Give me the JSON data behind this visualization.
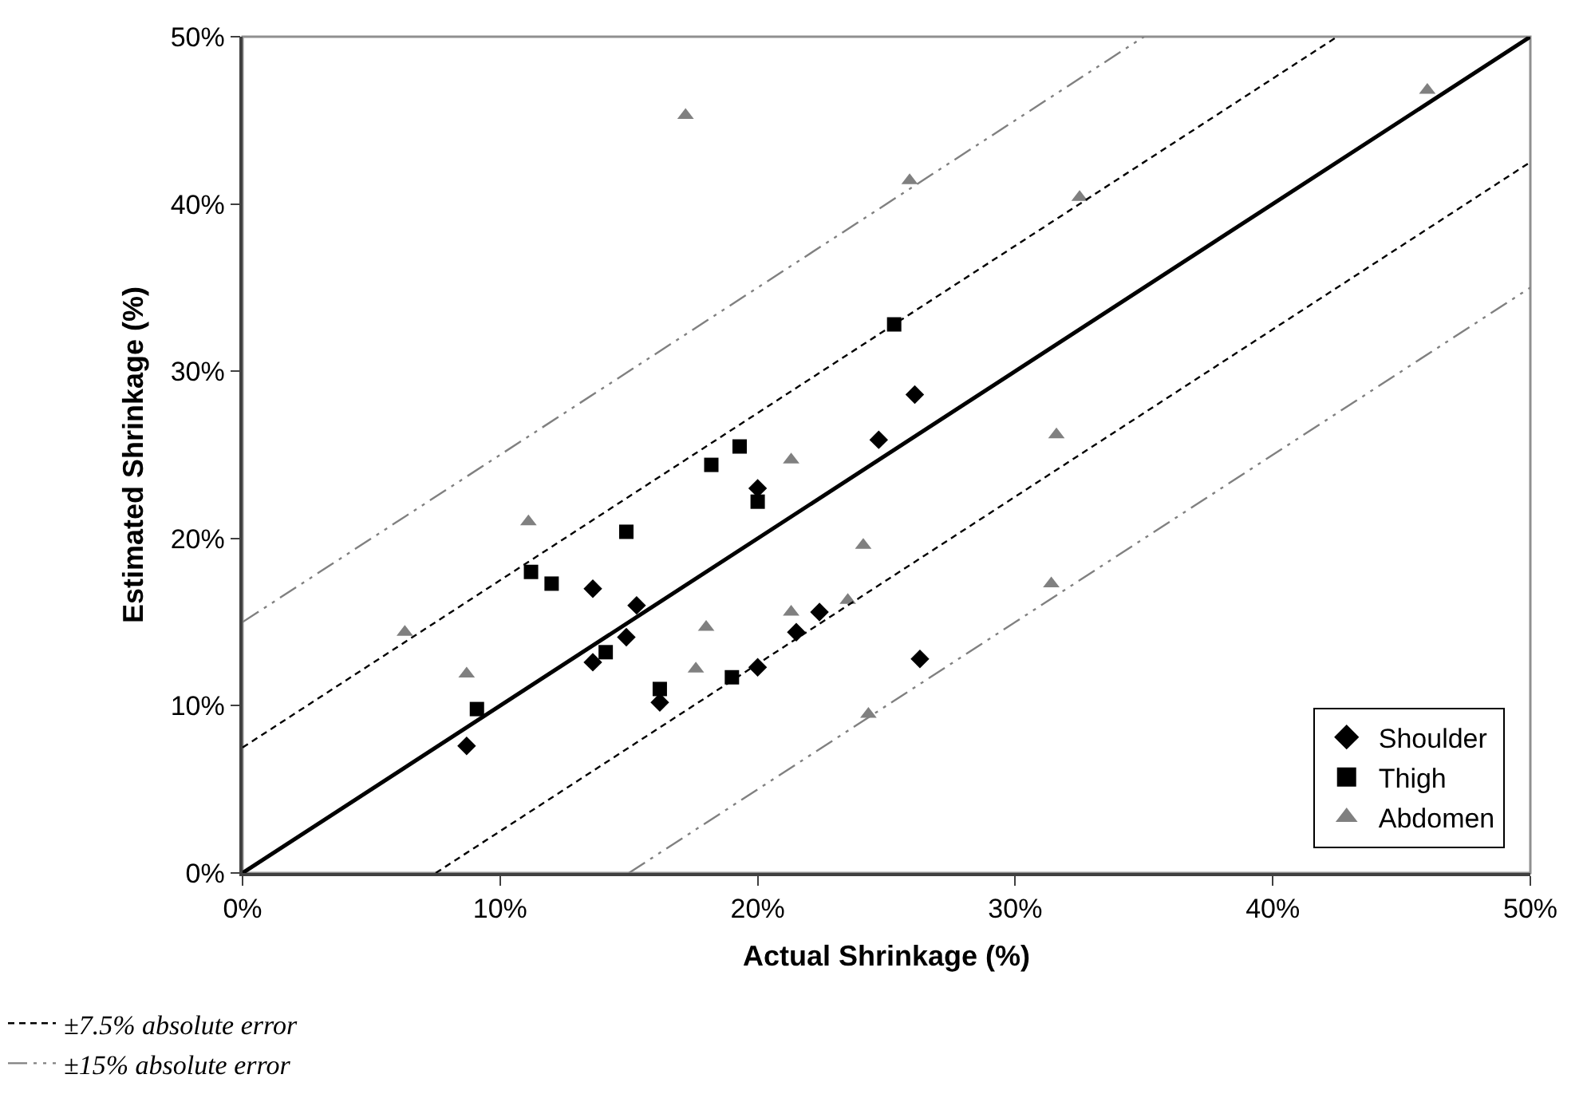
{
  "chart_data": {
    "type": "scatter",
    "xlabel": "Actual Shrinkage (%)",
    "ylabel": "Estimated Shrinkage (%)",
    "xlim": [
      0,
      50
    ],
    "ylim": [
      0,
      50
    ],
    "xticks": [
      {
        "value": 0,
        "label": "0%"
      },
      {
        "value": 10,
        "label": "10%"
      },
      {
        "value": 20,
        "label": "20%"
      },
      {
        "value": 30,
        "label": "30%"
      },
      {
        "value": 40,
        "label": "40%"
      },
      {
        "value": 50,
        "label": "50%"
      }
    ],
    "yticks": [
      {
        "value": 0,
        "label": "0%"
      },
      {
        "value": 10,
        "label": "10%"
      },
      {
        "value": 20,
        "label": "20%"
      },
      {
        "value": 30,
        "label": "30%"
      },
      {
        "value": 40,
        "label": "40%"
      },
      {
        "value": 50,
        "label": "50%"
      }
    ],
    "grid": false,
    "legend": "bottom",
    "series": [
      {
        "name": "Shoulder",
        "color": "#000000",
        "marker": "diamond",
        "x": [
          8.7,
          13.6,
          13.6,
          14.9,
          15.3,
          16.2,
          20.0,
          21.5,
          22.4,
          20.0,
          26.1,
          24.7,
          26.3
        ],
        "values": [
          7.6,
          17.0,
          12.6,
          14.1,
          16.0,
          10.2,
          12.3,
          14.4,
          15.6,
          23.0,
          28.6,
          25.9,
          12.8
        ]
      },
      {
        "name": "Thigh",
        "color": "#000000",
        "marker": "square",
        "x": [
          9.1,
          11.2,
          12.0,
          14.9,
          14.1,
          16.2,
          19.0,
          20.0,
          18.2,
          19.3,
          25.3
        ],
        "values": [
          9.8,
          18.0,
          17.3,
          20.4,
          13.2,
          11.0,
          11.7,
          22.2,
          24.4,
          25.5,
          32.8
        ]
      },
      {
        "name": "Abdomen",
        "color": "#808080",
        "marker": "triangle",
        "x": [
          17.2,
          21.3,
          11.1,
          6.3,
          8.7,
          17.6,
          18.0,
          21.3,
          23.5,
          24.1,
          24.3,
          25.9,
          32.5,
          46.0,
          31.6,
          31.4
        ],
        "values": [
          45.3,
          24.7,
          21.0,
          14.4,
          11.9,
          12.2,
          14.7,
          15.6,
          16.3,
          19.6,
          9.5,
          41.4,
          40.4,
          46.8,
          26.2,
          17.3
        ]
      },
      {
        "type": "line",
        "color": "#000000",
        "line_style": "solid",
        "x": [
          0,
          50
        ],
        "values": [
          0,
          50
        ]
      },
      {
        "type": "line",
        "name": "±7.5% absolute error",
        "color": "#000000",
        "line_style": "dashed",
        "x": [
          0,
          42.5,
          null,
          7.5,
          50
        ],
        "values": [
          7.5,
          50,
          null,
          0,
          42.5
        ]
      },
      {
        "type": "line",
        "name": "±15% absolute error",
        "color": "#808080",
        "line_style": "dashdot",
        "x": [
          0,
          35,
          null,
          15,
          50
        ],
        "values": [
          15,
          50,
          null,
          0,
          35
        ]
      }
    ]
  }
}
